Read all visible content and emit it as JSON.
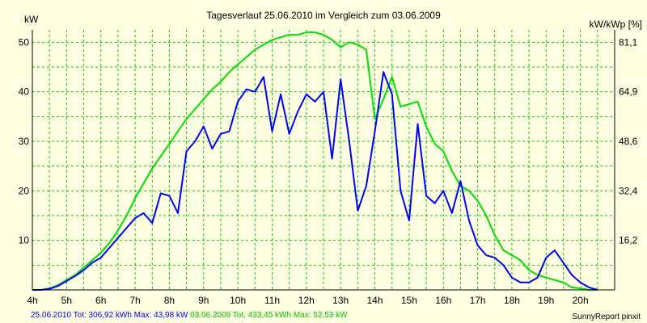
{
  "chart_data": {
    "type": "line",
    "title": "Tagesverlauf 25.06.2010 im Vergleich zum 03.06.2009",
    "ylabel_left": "kW",
    "ylabel_right": "kW/kWp [%]",
    "xlim": [
      4,
      21
    ],
    "ylim": [
      0,
      52.5
    ],
    "x_ticks": [
      4,
      5,
      6,
      7,
      8,
      9,
      10,
      11,
      12,
      13,
      14,
      15,
      16,
      17,
      18,
      19,
      20
    ],
    "x_tick_labels": [
      "4h",
      "5h",
      "6h",
      "7h",
      "8h",
      "9h",
      "10h",
      "11h",
      "12h",
      "13h",
      "14h",
      "15h",
      "16h",
      "17h",
      "18h",
      "19h",
      "20h"
    ],
    "y_ticks_left": [
      10,
      20,
      30,
      40,
      50
    ],
    "y_tick_labels_left": [
      "10",
      "20",
      "30",
      "40",
      "50"
    ],
    "y_ticks_right_values": [
      10,
      20,
      30,
      40,
      50
    ],
    "y_tick_labels_right": [
      "16,2",
      "32,4",
      "48,6",
      "64,9",
      "81,1"
    ],
    "grid": true,
    "series": [
      {
        "name": "25.06.2010",
        "color": "#0000ff",
        "x": [
          4,
          4.25,
          4.5,
          4.75,
          5,
          5.25,
          5.5,
          5.75,
          6,
          6.25,
          6.5,
          6.75,
          7,
          7.25,
          7.5,
          7.75,
          8,
          8.25,
          8.5,
          8.75,
          9,
          9.25,
          9.5,
          9.75,
          10,
          10.25,
          10.5,
          10.75,
          11,
          11.25,
          11.5,
          11.75,
          12,
          12.25,
          12.5,
          12.75,
          13,
          13.25,
          13.5,
          13.75,
          14,
          14.25,
          14.5,
          14.75,
          15,
          15.25,
          15.5,
          15.75,
          16,
          16.25,
          16.5,
          16.75,
          17,
          17.25,
          17.5,
          17.75,
          18,
          18.25,
          18.5,
          18.75,
          19,
          19.25,
          19.5,
          19.75,
          20,
          20.25,
          20.5
        ],
        "values": [
          0,
          0,
          0.2,
          0.8,
          1.8,
          2.8,
          4,
          5.5,
          6.5,
          8.5,
          10.5,
          12.5,
          14.5,
          15.5,
          13.5,
          19.5,
          19,
          15.5,
          28,
          30,
          33,
          28.5,
          31.5,
          32,
          38,
          40.5,
          40,
          43,
          32,
          39.5,
          31.5,
          36,
          39.5,
          38,
          40,
          26.5,
          42.5,
          30,
          16,
          21,
          32,
          44,
          39.5,
          20,
          14,
          33.5,
          19,
          17.5,
          20,
          15.5,
          22,
          14,
          9,
          7,
          6.5,
          5,
          2.5,
          1.5,
          1.5,
          2.5,
          6.5,
          8,
          5.5,
          3,
          1.5,
          0.5,
          0
        ]
      },
      {
        "name": "03.06.2009",
        "color": "#00e000",
        "x": [
          4,
          4.25,
          4.5,
          4.75,
          5,
          5.25,
          5.5,
          5.75,
          6,
          6.25,
          6.5,
          6.75,
          7,
          7.25,
          7.5,
          7.75,
          8,
          8.25,
          8.5,
          8.75,
          9,
          9.25,
          9.5,
          9.75,
          10,
          10.25,
          10.5,
          10.75,
          11,
          11.25,
          11.5,
          11.75,
          12,
          12.25,
          12.5,
          12.75,
          13,
          13.25,
          13.5,
          13.75,
          14,
          14.25,
          14.5,
          14.75,
          15,
          15.25,
          15.5,
          15.75,
          16,
          16.25,
          16.5,
          16.75,
          17,
          17.25,
          17.5,
          17.75,
          18,
          18.25,
          18.5,
          18.75,
          19,
          19.25,
          19.5,
          19.75,
          20,
          20.25,
          20.5
        ],
        "values": [
          0,
          0,
          0.3,
          1,
          2,
          3,
          4.5,
          6,
          7.5,
          9.5,
          12,
          15,
          18.5,
          21.5,
          24.5,
          27,
          29.5,
          32,
          34.5,
          36.5,
          38.5,
          40.5,
          42,
          44,
          45.5,
          47,
          48.5,
          49.5,
          50.5,
          51,
          51.5,
          51.5,
          52,
          52,
          51.5,
          50.5,
          49,
          50,
          49.5,
          48.5,
          34.5,
          38.5,
          43,
          37,
          37.5,
          38,
          33,
          29.5,
          28,
          24,
          21,
          20,
          18,
          15,
          11,
          8,
          7,
          6,
          4,
          3,
          2.5,
          2,
          1.5,
          0.5,
          0.3,
          0,
          0
        ]
      }
    ],
    "footer_left": [
      {
        "text": "25.06.2010 Tot: 306,92 kWh Max: 43,98 kW",
        "color": "#0000ff"
      },
      {
        "text": " 03.06.2009 Tot: 433,45 kWh Max: 52,53 kW",
        "color": "#00c000"
      }
    ],
    "footer_right": "SunnyReport pinxit",
    "background": "#ffffe1",
    "grid_color": "#00cc00"
  }
}
